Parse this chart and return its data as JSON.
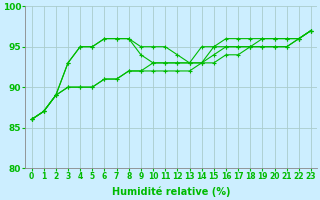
{
  "xlabel": "Humidité relative (%)",
  "background_color": "#cceeff",
  "grid_color": "#aacccc",
  "line_color": "#00bb00",
  "spine_color": "#888888",
  "xlim": [
    -0.5,
    23.5
  ],
  "ylim": [
    80,
    100
  ],
  "yticks": [
    80,
    85,
    90,
    95,
    100
  ],
  "xticks": [
    0,
    1,
    2,
    3,
    4,
    5,
    6,
    7,
    8,
    9,
    10,
    11,
    12,
    13,
    14,
    15,
    16,
    17,
    18,
    19,
    20,
    21,
    22,
    23
  ],
  "series": [
    [
      86,
      87,
      89,
      93,
      95,
      95,
      96,
      96,
      96,
      95,
      95,
      95,
      94,
      93,
      95,
      95,
      96,
      96,
      96,
      96,
      96,
      96,
      96,
      97
    ],
    [
      86,
      87,
      89,
      93,
      95,
      95,
      96,
      96,
      96,
      94,
      93,
      93,
      93,
      93,
      93,
      95,
      95,
      95,
      95,
      95,
      95,
      95,
      96,
      97
    ],
    [
      86,
      87,
      89,
      90,
      90,
      90,
      91,
      91,
      92,
      92,
      93,
      93,
      93,
      93,
      93,
      94,
      95,
      95,
      95,
      96,
      96,
      96,
      96,
      97
    ],
    [
      86,
      87,
      89,
      90,
      90,
      90,
      91,
      91,
      92,
      92,
      92,
      92,
      92,
      92,
      93,
      93,
      94,
      94,
      95,
      95,
      95,
      95,
      96,
      97
    ]
  ]
}
